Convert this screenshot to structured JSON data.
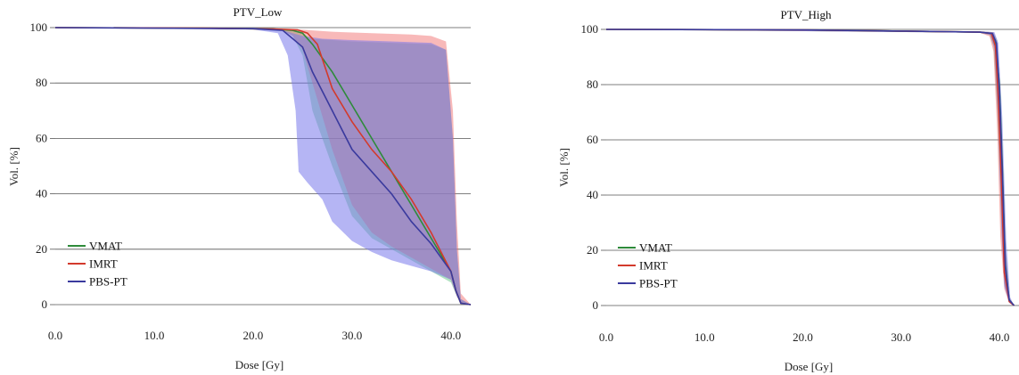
{
  "chart_data": [
    {
      "type": "line",
      "title": "PTV_Low",
      "xlabel": "Dose [Gy]",
      "ylabel": "Vol. [%]",
      "xlim": [
        0,
        42
      ],
      "ylim": [
        0,
        100
      ],
      "xticks": [
        "0.0",
        "10.0",
        "20.0",
        "30.0",
        "40.0"
      ],
      "xtick_values": [
        0,
        10,
        20,
        30,
        40
      ],
      "yticks": [
        "0",
        "20",
        "40",
        "60",
        "80",
        "100"
      ],
      "ytick_values": [
        0,
        20,
        40,
        60,
        80,
        100
      ],
      "grid": "horizontal",
      "legend_position": "lower-left",
      "series": [
        {
          "name": "VMAT",
          "color": "#2e8b3a",
          "line": [
            [
              0,
              100
            ],
            [
              15,
              99.8
            ],
            [
              22,
              99.5
            ],
            [
              24,
              99
            ],
            [
              25,
              98
            ],
            [
              26,
              94
            ],
            [
              28,
              84
            ],
            [
              30,
              72
            ],
            [
              32,
              60
            ],
            [
              34,
              48
            ],
            [
              36,
              36
            ],
            [
              38,
              24
            ],
            [
              40,
              12
            ],
            [
              40.5,
              5
            ],
            [
              41,
              0.5
            ],
            [
              42,
              0
            ]
          ],
          "band_upper": [
            [
              0,
              100
            ],
            [
              20,
              99.7
            ],
            [
              24,
              99.3
            ],
            [
              26,
              96
            ],
            [
              30,
              95
            ],
            [
              34,
              94.5
            ],
            [
              38,
              94
            ],
            [
              39.5,
              92
            ],
            [
              40.2,
              60
            ],
            [
              40.6,
              20
            ],
            [
              41,
              2
            ],
            [
              42,
              0
            ]
          ],
          "band_lower": [
            [
              0,
              100
            ],
            [
              20,
              99.6
            ],
            [
              23,
              99
            ],
            [
              24,
              97
            ],
            [
              25,
              90
            ],
            [
              26,
              70
            ],
            [
              28,
              50
            ],
            [
              30,
              32
            ],
            [
              32,
              24
            ],
            [
              34,
              20
            ],
            [
              36,
              16
            ],
            [
              38,
              12
            ],
            [
              40,
              8
            ],
            [
              40.6,
              3
            ],
            [
              41,
              0.5
            ],
            [
              42,
              0
            ]
          ]
        },
        {
          "name": "IMRT",
          "color": "#d33a2c",
          "line": [
            [
              0,
              100
            ],
            [
              15,
              99.8
            ],
            [
              22,
              99.5
            ],
            [
              24.5,
              99.2
            ],
            [
              25.5,
              98
            ],
            [
              26.5,
              94
            ],
            [
              28,
              78
            ],
            [
              30,
              66
            ],
            [
              32,
              56
            ],
            [
              34,
              48
            ],
            [
              36,
              38
            ],
            [
              38,
              26
            ],
            [
              40,
              12
            ],
            [
              40.5,
              5
            ],
            [
              41,
              0.5
            ],
            [
              42,
              0
            ]
          ],
          "band_upper": [
            [
              0,
              100
            ],
            [
              20,
              99.7
            ],
            [
              24,
              99.5
            ],
            [
              26,
              99
            ],
            [
              28,
              98.5
            ],
            [
              32,
              98
            ],
            [
              36,
              97.5
            ],
            [
              38,
              97
            ],
            [
              39.5,
              95
            ],
            [
              40.2,
              70
            ],
            [
              40.6,
              30
            ],
            [
              41,
              4
            ],
            [
              42,
              0
            ]
          ],
          "band_lower": [
            [
              0,
              100
            ],
            [
              20,
              99.6
            ],
            [
              23,
              99
            ],
            [
              24,
              97
            ],
            [
              25,
              92
            ],
            [
              26,
              80
            ],
            [
              28,
              56
            ],
            [
              30,
              36
            ],
            [
              32,
              26
            ],
            [
              34,
              21
            ],
            [
              36,
              17
            ],
            [
              38,
              13
            ],
            [
              40,
              9
            ],
            [
              40.6,
              3
            ],
            [
              41,
              0.5
            ],
            [
              42,
              0
            ]
          ]
        },
        {
          "name": "PBS-PT",
          "color": "#3a3a9e",
          "line": [
            [
              0,
              100
            ],
            [
              10,
              99.8
            ],
            [
              20,
              99.6
            ],
            [
              23,
              99
            ],
            [
              24,
              96
            ],
            [
              25,
              93
            ],
            [
              26,
              84
            ],
            [
              28,
              70
            ],
            [
              30,
              56
            ],
            [
              32,
              48
            ],
            [
              34,
              40
            ],
            [
              36,
              30
            ],
            [
              38,
              22
            ],
            [
              40,
              12
            ],
            [
              40.5,
              5
            ],
            [
              41,
              0.5
            ],
            [
              42,
              0
            ]
          ],
          "band_upper": [
            [
              0,
              100
            ],
            [
              20,
              99.5
            ],
            [
              23,
              99
            ],
            [
              25,
              97
            ],
            [
              27,
              96
            ],
            [
              30,
              95.5
            ],
            [
              34,
              95
            ],
            [
              38,
              94.5
            ],
            [
              39.5,
              92
            ],
            [
              40.2,
              60
            ],
            [
              40.6,
              20
            ],
            [
              41,
              2
            ],
            [
              42,
              0
            ]
          ],
          "band_lower": [
            [
              0,
              100
            ],
            [
              20,
              99.3
            ],
            [
              22.5,
              98
            ],
            [
              23.5,
              90
            ],
            [
              24.3,
              70
            ],
            [
              24.6,
              48
            ],
            [
              25.5,
              44
            ],
            [
              27,
              38
            ],
            [
              28,
              30
            ],
            [
              30,
              23
            ],
            [
              32,
              19
            ],
            [
              34,
              16
            ],
            [
              36,
              14
            ],
            [
              38,
              12
            ],
            [
              40,
              9
            ],
            [
              40.6,
              3
            ],
            [
              41,
              0.5
            ],
            [
              42,
              0
            ]
          ]
        }
      ]
    },
    {
      "type": "line",
      "title": "PTV_High",
      "xlabel": "Dose [Gy]",
      "ylabel": "Vol. [%]",
      "xlim": [
        0,
        42
      ],
      "ylim": [
        0,
        100
      ],
      "xticks": [
        "0.0",
        "10.0",
        "20.0",
        "30.0",
        "40.0"
      ],
      "xtick_values": [
        0,
        10,
        20,
        30,
        40
      ],
      "yticks": [
        "0",
        "20",
        "40",
        "60",
        "80",
        "100"
      ],
      "ytick_values": [
        0,
        20,
        40,
        60,
        80,
        100
      ],
      "grid": "horizontal",
      "legend_position": "lower-left",
      "series": [
        {
          "name": "VMAT",
          "color": "#2e8b3a",
          "line": [
            [
              0,
              100
            ],
            [
              20,
              99.8
            ],
            [
              30,
              99.4
            ],
            [
              38,
              99
            ],
            [
              39.2,
              98.5
            ],
            [
              39.6,
              96
            ],
            [
              40,
              80
            ],
            [
              40.3,
              50
            ],
            [
              40.6,
              15
            ],
            [
              41,
              2
            ],
            [
              41.5,
              0
            ]
          ],
          "band_upper": [
            [
              0,
              100
            ],
            [
              38,
              99.3
            ],
            [
              39.4,
              99
            ],
            [
              39.8,
              96
            ],
            [
              40.2,
              70
            ],
            [
              40.6,
              25
            ],
            [
              41,
              3
            ],
            [
              41.5,
              0
            ]
          ],
          "band_lower": [
            [
              0,
              100
            ],
            [
              38,
              98.8
            ],
            [
              39,
              98
            ],
            [
              39.4,
              94
            ],
            [
              39.8,
              70
            ],
            [
              40.2,
              30
            ],
            [
              40.5,
              8
            ],
            [
              41,
              1
            ],
            [
              41.5,
              0
            ]
          ]
        },
        {
          "name": "IMRT",
          "color": "#d33a2c",
          "line": [
            [
              0,
              100
            ],
            [
              20,
              99.8
            ],
            [
              30,
              99.4
            ],
            [
              38,
              99
            ],
            [
              39.2,
              98.5
            ],
            [
              39.6,
              94
            ],
            [
              39.9,
              75
            ],
            [
              40.2,
              45
            ],
            [
              40.5,
              12
            ],
            [
              41,
              1.5
            ],
            [
              41.5,
              0
            ]
          ],
          "band_upper": [
            [
              0,
              100
            ],
            [
              38,
              99.3
            ],
            [
              39.4,
              99
            ],
            [
              39.8,
              95
            ],
            [
              40.2,
              65
            ],
            [
              40.6,
              22
            ],
            [
              41,
              3
            ],
            [
              41.5,
              0
            ]
          ],
          "band_lower": [
            [
              0,
              100
            ],
            [
              38,
              98.8
            ],
            [
              39,
              97.5
            ],
            [
              39.4,
              92
            ],
            [
              39.8,
              62
            ],
            [
              40.1,
              25
            ],
            [
              40.5,
              6
            ],
            [
              41,
              1
            ],
            [
              41.5,
              0
            ]
          ]
        },
        {
          "name": "PBS-PT",
          "color": "#3a3a9e",
          "line": [
            [
              0,
              100
            ],
            [
              20,
              99.8
            ],
            [
              30,
              99.4
            ],
            [
              38,
              99
            ],
            [
              39.3,
              98.5
            ],
            [
              39.7,
              95
            ],
            [
              40,
              78
            ],
            [
              40.3,
              48
            ],
            [
              40.6,
              14
            ],
            [
              41,
              2
            ],
            [
              41.5,
              0
            ]
          ],
          "band_upper": [
            [
              0,
              100
            ],
            [
              38,
              99.3
            ],
            [
              39.5,
              99
            ],
            [
              39.9,
              95
            ],
            [
              40.3,
              68
            ],
            [
              40.7,
              24
            ],
            [
              41.1,
              3
            ],
            [
              41.5,
              0
            ]
          ],
          "band_lower": [
            [
              0,
              100
            ],
            [
              38,
              98.8
            ],
            [
              39.1,
              98
            ],
            [
              39.5,
              93
            ],
            [
              39.9,
              66
            ],
            [
              40.2,
              28
            ],
            [
              40.5,
              7
            ],
            [
              41,
              1
            ],
            [
              41.5,
              0
            ]
          ]
        }
      ]
    }
  ]
}
